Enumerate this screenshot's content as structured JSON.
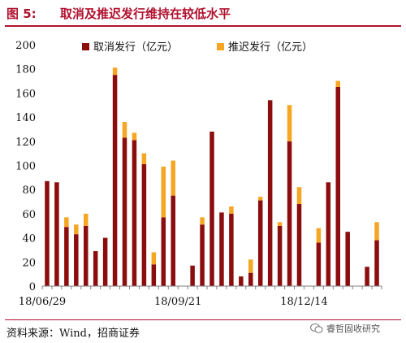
{
  "figure": {
    "number": "图 5:",
    "title": "取消及推迟发行维持在较低水平",
    "source": "资料来源：Wind，招商证券",
    "watermark": "睿哲固收研究",
    "watermark_icon": "wechat-icon"
  },
  "colors": {
    "accent": "#b0112e",
    "cancel": "#8b0d0d",
    "delay": "#f5a623",
    "axis": "#7f7f7f"
  },
  "chart_data": {
    "type": "bar",
    "stacked": true,
    "ylim": [
      0,
      200
    ],
    "yticks": [
      0,
      20,
      40,
      60,
      80,
      100,
      120,
      140,
      160,
      180,
      200
    ],
    "xtick_labels": [
      {
        "label": "18/06/29",
        "index": 0
      },
      {
        "label": "18/09/21",
        "index": 14
      },
      {
        "label": "18/12/14",
        "index": 27
      }
    ],
    "legend_position": "top",
    "grid": false,
    "series": [
      {
        "name": "取消发行（亿元）",
        "values": [
          87,
          86,
          49,
          43,
          50,
          29,
          40,
          175,
          123,
          121,
          101,
          18,
          57,
          75,
          0,
          17,
          51,
          128,
          61,
          60,
          8,
          11,
          71,
          154,
          50,
          120,
          68,
          0,
          36,
          86,
          165,
          45,
          0,
          16,
          38
        ]
      },
      {
        "name": "推迟发行（亿元）",
        "values": [
          0,
          0,
          8,
          8,
          10,
          0,
          0,
          6,
          13,
          6,
          9,
          10,
          42,
          29,
          0,
          0,
          6,
          0,
          0,
          6,
          0,
          11,
          3,
          0,
          3,
          30,
          14,
          0,
          12,
          0,
          5,
          0,
          0,
          0,
          15
        ]
      }
    ]
  }
}
